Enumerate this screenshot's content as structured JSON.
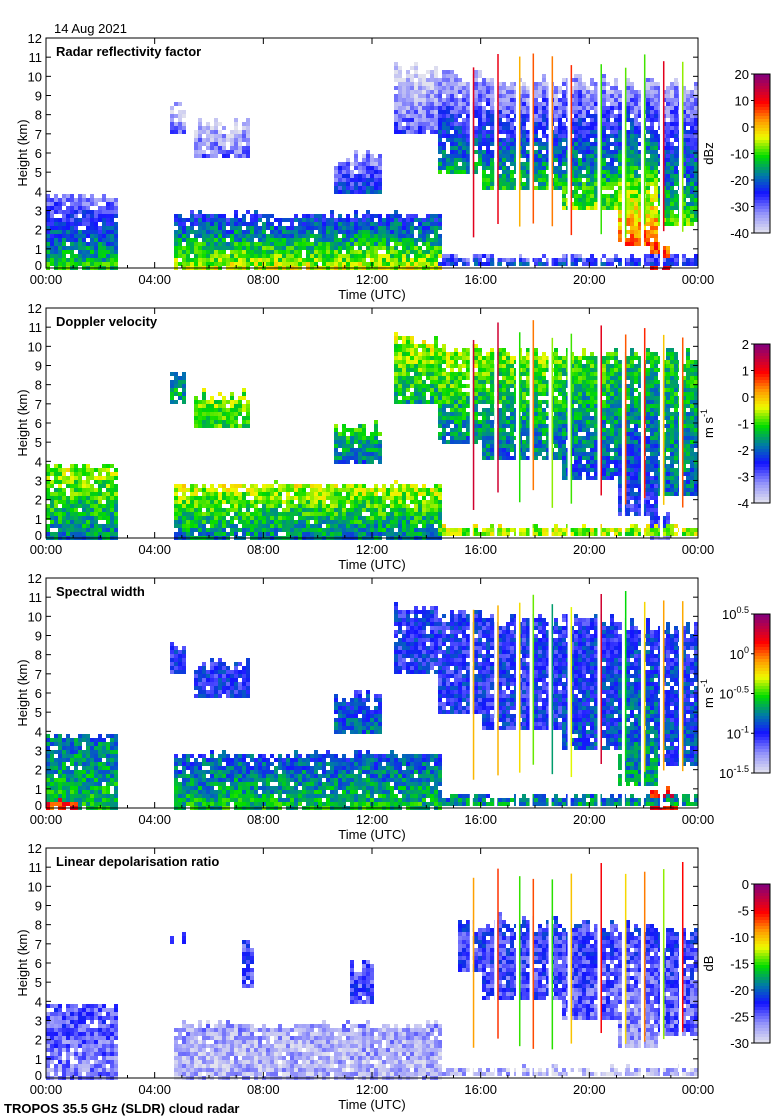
{
  "date_label": "14 Aug 2021",
  "footer": "TROPOS 35.5 GHz (SLDR) cloud radar",
  "chart_data": [
    {
      "type": "heatmap",
      "title": "Radar reflectivity factor",
      "xlabel": "Time (UTC)",
      "ylabel": "Height (km)",
      "xlim": [
        0,
        24
      ],
      "ylim": [
        0,
        12
      ],
      "xticks": [
        "00:00",
        "04:00",
        "08:00",
        "12:00",
        "16:00",
        "20:00",
        "00:00"
      ],
      "yticks": [
        "0",
        "1",
        "2",
        "3",
        "4",
        "5",
        "6",
        "7",
        "8",
        "9",
        "10",
        "11",
        "12"
      ],
      "colorbar": {
        "unit": "dBz",
        "unit_exp": "",
        "range": [
          -40,
          20
        ],
        "ticks": [
          {
            "t": "20",
            "e": ""
          },
          {
            "t": "10",
            "e": ""
          },
          {
            "t": "0",
            "e": ""
          },
          {
            "t": "-10",
            "e": ""
          },
          {
            "t": "-20",
            "e": ""
          },
          {
            "t": "-30",
            "e": ""
          },
          {
            "t": "-40",
            "e": ""
          }
        ]
      },
      "regions": [
        {
          "t": [
            0,
            2.6
          ],
          "h": [
            0,
            3.8
          ],
          "v": -12,
          "vtop": -32
        },
        {
          "t": [
            4.7,
            14.6
          ],
          "h": [
            0,
            2.8
          ],
          "v": -5,
          "vtop": -25
        },
        {
          "t": [
            4.6,
            5.1
          ],
          "h": [
            7,
            8.6
          ],
          "v": -30,
          "vtop": -36
        },
        {
          "t": [
            5.4,
            7.5
          ],
          "h": [
            5.8,
            7.5
          ],
          "v": -30,
          "vtop": -38
        },
        {
          "t": [
            10.6,
            12.3
          ],
          "h": [
            3.8,
            5.8
          ],
          "v": -22,
          "vtop": -34
        },
        {
          "t": [
            12.8,
            14.5
          ],
          "h": [
            7,
            10.4
          ],
          "v": -28,
          "vtop": -40
        },
        {
          "t": [
            14.5,
            16
          ],
          "h": [
            5,
            10
          ],
          "v": -15,
          "vtop": -36
        },
        {
          "t": [
            16,
            19
          ],
          "h": [
            4,
            9.8
          ],
          "v": -12,
          "vtop": -35
        },
        {
          "t": [
            19,
            21
          ],
          "h": [
            3,
            9.8
          ],
          "v": -8,
          "vtop": -35
        },
        {
          "t": [
            21,
            22.5
          ],
          "h": [
            1.2,
            9.6
          ],
          "v": 6,
          "vtop": -35
        },
        {
          "t": [
            22.5,
            24
          ],
          "h": [
            2.2,
            9.5
          ],
          "v": -10,
          "vtop": -35
        },
        {
          "t": [
            22.3,
            23
          ],
          "h": [
            0,
            1.2
          ],
          "v": 12,
          "vtop": 5
        },
        {
          "t": [
            14.5,
            24
          ],
          "h": [
            0.15,
            0.6
          ],
          "v": -22,
          "vtop": -30
        }
      ]
    },
    {
      "type": "heatmap",
      "title": "Doppler velocity",
      "xlabel": "Time (UTC)",
      "ylabel": "Height (km)",
      "xlim": [
        0,
        24
      ],
      "ylim": [
        0,
        12
      ],
      "xticks": [
        "00:00",
        "04:00",
        "08:00",
        "12:00",
        "16:00",
        "20:00",
        "00:00"
      ],
      "yticks": [
        "0",
        "1",
        "2",
        "3",
        "4",
        "5",
        "6",
        "7",
        "8",
        "9",
        "10",
        "11",
        "12"
      ],
      "colorbar": {
        "unit": "m s",
        "unit_exp": "-1",
        "range": [
          -4,
          2
        ],
        "ticks": [
          {
            "t": "2",
            "e": ""
          },
          {
            "t": "1",
            "e": ""
          },
          {
            "t": "0",
            "e": ""
          },
          {
            "t": "-1",
            "e": ""
          },
          {
            "t": "-2",
            "e": ""
          },
          {
            "t": "-3",
            "e": ""
          },
          {
            "t": "-4",
            "e": ""
          }
        ]
      },
      "regions": [
        {
          "t": [
            0,
            2.6
          ],
          "h": [
            0,
            3.8
          ],
          "v": -1.8,
          "vtop": -0.6
        },
        {
          "t": [
            4.7,
            14.6
          ],
          "h": [
            0,
            2.8
          ],
          "v": -1.8,
          "vtop": -0.5
        },
        {
          "t": [
            4.6,
            5.1
          ],
          "h": [
            7,
            8.6
          ],
          "v": -1.5,
          "vtop": -1.5
        },
        {
          "t": [
            5.4,
            7.5
          ],
          "h": [
            5.8,
            7.5
          ],
          "v": -1.0,
          "vtop": -0.8
        },
        {
          "t": [
            10.6,
            12.3
          ],
          "h": [
            3.8,
            5.8
          ],
          "v": -2.0,
          "vtop": -1.2
        },
        {
          "t": [
            12.8,
            14.5
          ],
          "h": [
            7,
            10.4
          ],
          "v": -1.5,
          "vtop": -0.6
        },
        {
          "t": [
            14.5,
            16
          ],
          "h": [
            5,
            10
          ],
          "v": -1.8,
          "vtop": -0.6
        },
        {
          "t": [
            16,
            19
          ],
          "h": [
            4,
            9.8
          ],
          "v": -2.0,
          "vtop": -0.8
        },
        {
          "t": [
            19,
            21
          ],
          "h": [
            3,
            9.8
          ],
          "v": -2.2,
          "vtop": -1.0
        },
        {
          "t": [
            21,
            22.5
          ],
          "h": [
            1.2,
            9.6
          ],
          "v": -2.6,
          "vtop": -1.2
        },
        {
          "t": [
            22.5,
            24
          ],
          "h": [
            2.2,
            9.5
          ],
          "v": -2.0,
          "vtop": -1.2
        },
        {
          "t": [
            22.3,
            23
          ],
          "h": [
            0,
            1.2
          ],
          "v": -3.0,
          "vtop": -2.5
        },
        {
          "t": [
            14.5,
            24
          ],
          "h": [
            0.15,
            0.6
          ],
          "v": -0.8,
          "vtop": -0.5
        }
      ]
    },
    {
      "type": "heatmap",
      "title": "Spectral width",
      "xlabel": "Time (UTC)",
      "ylabel": "Height (km)",
      "xlim": [
        0,
        24
      ],
      "ylim": [
        0,
        12
      ],
      "xticks": [
        "00:00",
        "04:00",
        "08:00",
        "12:00",
        "16:00",
        "20:00",
        "00:00"
      ],
      "yticks": [
        "0",
        "1",
        "2",
        "3",
        "4",
        "5",
        "6",
        "7",
        "8",
        "9",
        "10",
        "11",
        "12"
      ],
      "colorbar": {
        "unit": "m s",
        "unit_exp": "-1",
        "log10_range": [
          -1.5,
          0.5
        ],
        "ticks": [
          {
            "t": "10",
            "e": "0.5"
          },
          {
            "t": "10",
            "e": "0"
          },
          {
            "t": "10",
            "e": "-0.5"
          },
          {
            "t": "10",
            "e": "-1"
          },
          {
            "t": "10",
            "e": "-1.5"
          }
        ]
      },
      "regions": [
        {
          "t": [
            0,
            2.6
          ],
          "h": [
            0,
            3.8
          ],
          "v": -0.6,
          "vtop": -0.8
        },
        {
          "t": [
            0,
            1.2
          ],
          "h": [
            0,
            0.4
          ],
          "v": 0.1,
          "vtop": 0.1
        },
        {
          "t": [
            4.7,
            14.6
          ],
          "h": [
            0,
            2.8
          ],
          "v": -0.6,
          "vtop": -0.9
        },
        {
          "t": [
            4.6,
            5.1
          ],
          "h": [
            7,
            8.6
          ],
          "v": -1.0,
          "vtop": -1.0
        },
        {
          "t": [
            5.4,
            7.5
          ],
          "h": [
            5.8,
            7.5
          ],
          "v": -1.0,
          "vtop": -1.0
        },
        {
          "t": [
            10.6,
            12.3
          ],
          "h": [
            3.8,
            5.8
          ],
          "v": -0.8,
          "vtop": -1.0
        },
        {
          "t": [
            12.8,
            14.5
          ],
          "h": [
            7,
            10.4
          ],
          "v": -1.0,
          "vtop": -1.0
        },
        {
          "t": [
            14.5,
            16
          ],
          "h": [
            5,
            10
          ],
          "v": -1.0,
          "vtop": -1.0
        },
        {
          "t": [
            16,
            19
          ],
          "h": [
            4,
            9.8
          ],
          "v": -1.0,
          "vtop": -1.0
        },
        {
          "t": [
            19,
            21
          ],
          "h": [
            3,
            9.8
          ],
          "v": -0.9,
          "vtop": -1.0
        },
        {
          "t": [
            21,
            22.5
          ],
          "h": [
            1.2,
            9.6
          ],
          "v": -0.7,
          "vtop": -1.0
        },
        {
          "t": [
            22.5,
            24
          ],
          "h": [
            2.2,
            9.5
          ],
          "v": -0.9,
          "vtop": -1.0
        },
        {
          "t": [
            22.3,
            23.2
          ],
          "h": [
            0,
            1.0
          ],
          "v": 0.2,
          "vtop": 0.1
        },
        {
          "t": [
            14.5,
            24
          ],
          "h": [
            0.15,
            0.6
          ],
          "v": -0.7,
          "vtop": -0.8
        }
      ]
    },
    {
      "type": "heatmap",
      "title": "Linear depolarisation ratio",
      "xlabel": "Time (UTC)",
      "ylabel": "Height (km)",
      "xlim": [
        0,
        24
      ],
      "ylim": [
        0,
        12
      ],
      "xticks": [
        "00:00",
        "04:00",
        "08:00",
        "12:00",
        "16:00",
        "20:00",
        "00:00"
      ],
      "yticks": [
        "0",
        "1",
        "2",
        "3",
        "4",
        "5",
        "6",
        "7",
        "8",
        "9",
        "10",
        "11",
        "12"
      ],
      "colorbar": {
        "unit": "dB",
        "unit_exp": "",
        "range": [
          -30,
          0
        ],
        "ticks": [
          {
            "t": "0",
            "e": ""
          },
          {
            "t": "-5",
            "e": ""
          },
          {
            "t": "-10",
            "e": ""
          },
          {
            "t": "-15",
            "e": ""
          },
          {
            "t": "-20",
            "e": ""
          },
          {
            "t": "-25",
            "e": ""
          },
          {
            "t": "-30",
            "e": ""
          }
        ]
      },
      "regions": [
        {
          "t": [
            0,
            2.6
          ],
          "h": [
            0,
            3.8
          ],
          "v": -26,
          "vtop": -24
        },
        {
          "t": [
            4.7,
            14.6
          ],
          "h": [
            0,
            2.8
          ],
          "v": -28,
          "vtop": -27
        },
        {
          "t": [
            4.6,
            5.1
          ],
          "h": [
            6.9,
            7.2
          ],
          "v": -25,
          "vtop": -25
        },
        {
          "t": [
            7.2,
            7.6
          ],
          "h": [
            4.8,
            7.0
          ],
          "v": -24,
          "vtop": -24
        },
        {
          "t": [
            11.2,
            12.1
          ],
          "h": [
            3.8,
            5.8
          ],
          "v": -24,
          "vtop": -24
        },
        {
          "t": [
            15.2,
            16
          ],
          "h": [
            5.5,
            8
          ],
          "v": -24,
          "vtop": -23
        },
        {
          "t": [
            16,
            19
          ],
          "h": [
            4,
            8.2
          ],
          "v": -24,
          "vtop": -23
        },
        {
          "t": [
            19,
            21
          ],
          "h": [
            3,
            8
          ],
          "v": -25,
          "vtop": -23
        },
        {
          "t": [
            21,
            22.5
          ],
          "h": [
            1.5,
            7.8
          ],
          "v": -27,
          "vtop": -23
        },
        {
          "t": [
            22.5,
            24
          ],
          "h": [
            2.2,
            7.6
          ],
          "v": -25,
          "vtop": -23
        },
        {
          "t": [
            14.5,
            24
          ],
          "h": [
            0.1,
            0.5
          ],
          "v": -28,
          "vtop": -28
        }
      ]
    }
  ],
  "data_gap_times_h": [
    15.6,
    16.5,
    17.3,
    17.8,
    18.5,
    19.2,
    20.3,
    21.2,
    21.9,
    22.6,
    23.3
  ]
}
